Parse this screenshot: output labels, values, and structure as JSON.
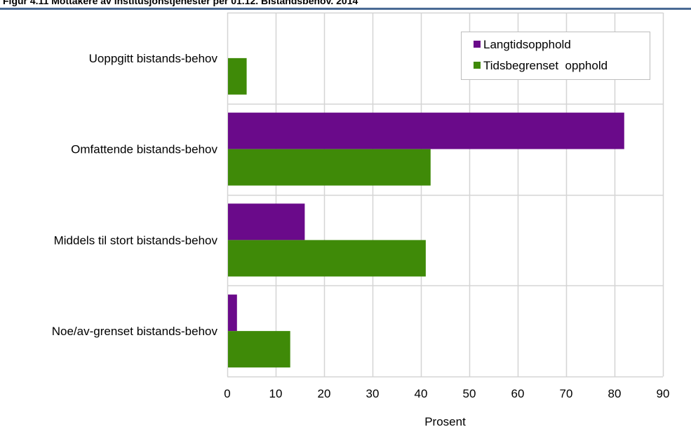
{
  "figure": {
    "caption": "Figur 4.11        Mottakere av institusjonstjenester per 01.12. Bistandsbehov. 2014"
  },
  "chart_data": {
    "type": "bar",
    "orientation": "horizontal",
    "categories": [
      "Uoppgitt bistands-behov",
      "Omfattende bistands-behov",
      "Middels til stort bistands-behov",
      "Noe/av-grenset bistands-behov"
    ],
    "series": [
      {
        "name": "Langtidsopphold",
        "color": "#6a0a8a",
        "values": [
          0,
          82,
          16,
          2
        ]
      },
      {
        "name": "Tidsbegrenset  opphold",
        "color": "#3f8a08",
        "values": [
          4,
          42,
          41,
          13
        ]
      }
    ],
    "xlabel": "Prosent",
    "ylabel": "",
    "xlim": [
      0,
      90
    ],
    "xticks": [
      "0",
      "10",
      "20",
      "30",
      "40",
      "50",
      "60",
      "70",
      "80",
      "90"
    ],
    "grid": true,
    "legend_position": "top-right"
  }
}
